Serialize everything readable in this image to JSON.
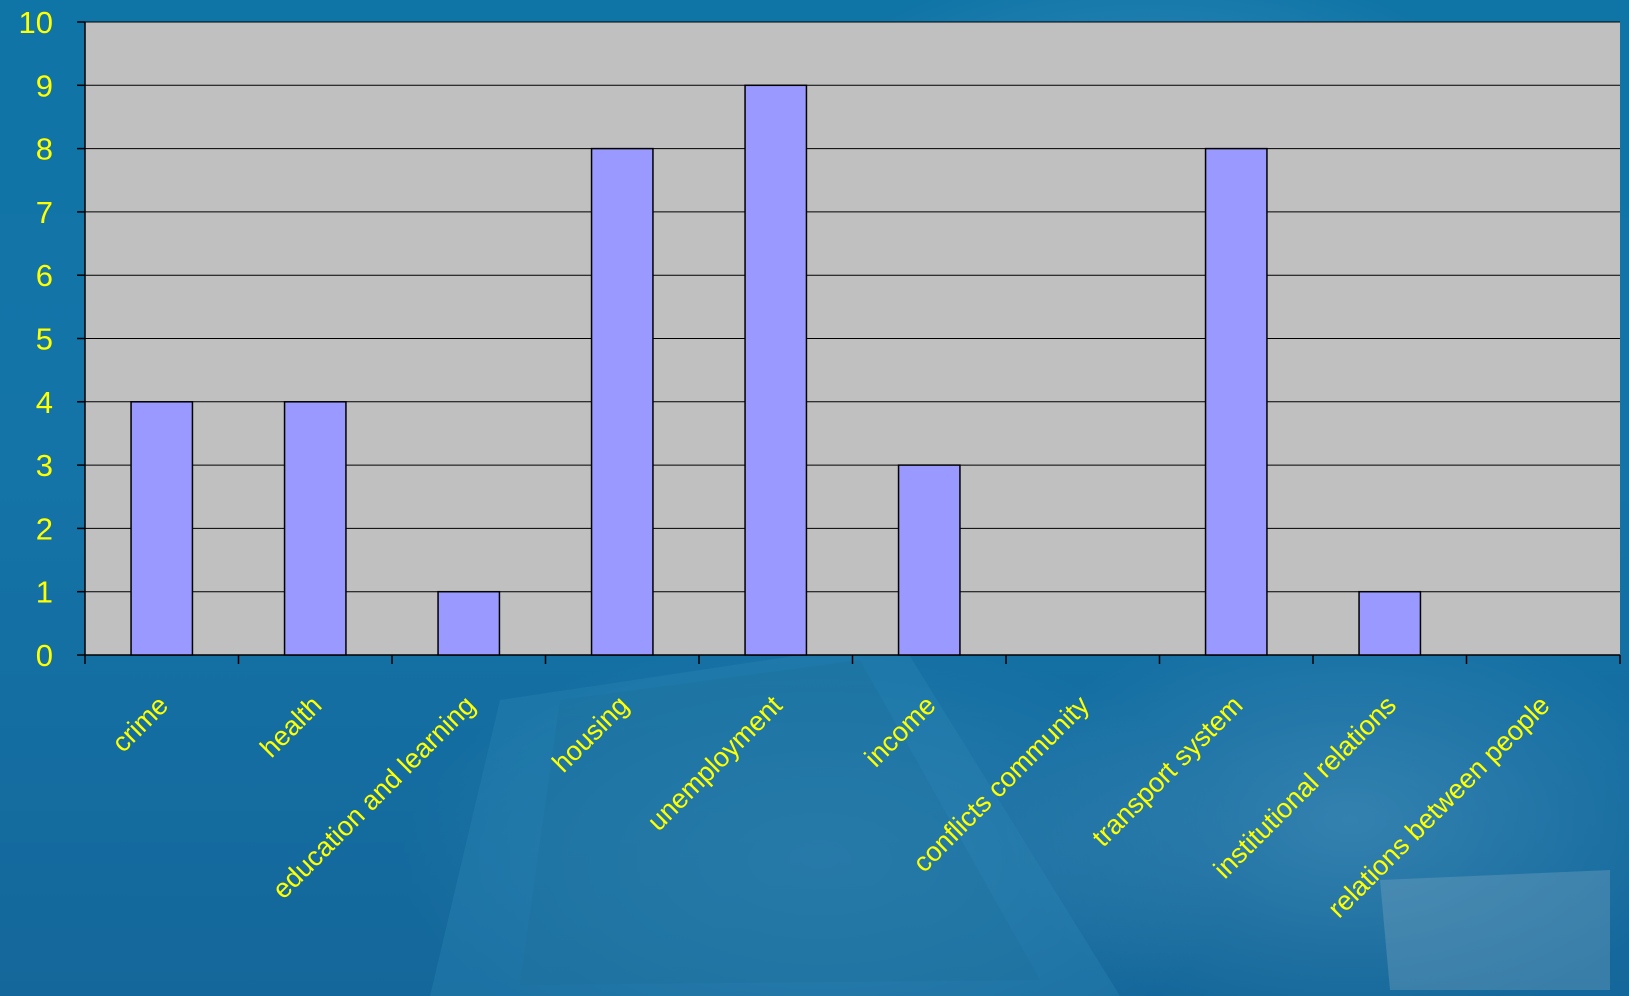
{
  "colors": {
    "background": "#1474a8",
    "plot_area": "#c0c0c0",
    "bar_fill": "#9999ff",
    "bar_stroke": "#000000",
    "gridline": "#000000",
    "text": "#ffff00"
  },
  "chart_data": {
    "type": "bar",
    "title": "",
    "xlabel": "",
    "ylabel": "",
    "ylim": [
      0,
      10
    ],
    "yticks": [
      0,
      1,
      2,
      3,
      4,
      5,
      6,
      7,
      8,
      9,
      10
    ],
    "grid": true,
    "legend": "none",
    "categories": [
      "crime",
      "health",
      "education and learning",
      "housing",
      "unemployment",
      "income",
      "conflicts community",
      "transport system",
      "institutional relations",
      "relations between people"
    ],
    "values": [
      4,
      4,
      1,
      8,
      9,
      3,
      0,
      8,
      1,
      0
    ]
  }
}
